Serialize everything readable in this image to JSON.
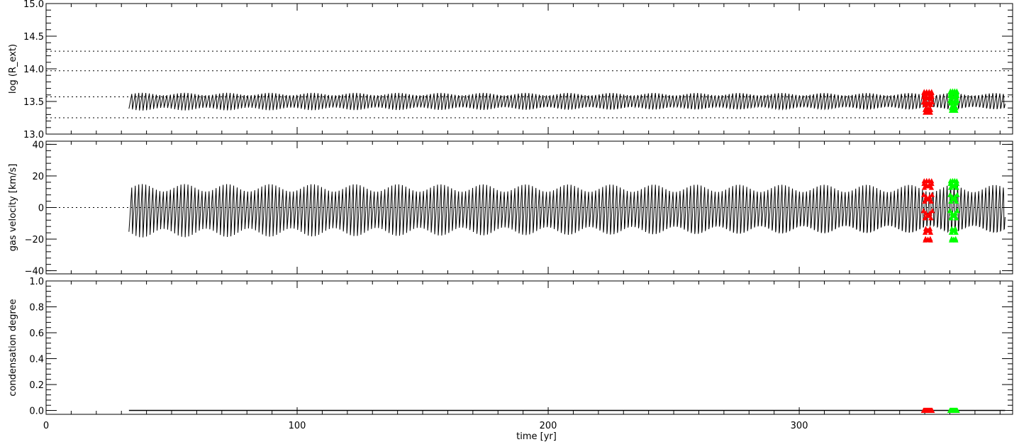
{
  "chart_data": [
    {
      "type": "line",
      "panel": "top",
      "ylabel": "log (R_ext)",
      "xlabel": "",
      "xlim": [
        0,
        385
      ],
      "ylim": [
        13.0,
        15.0
      ],
      "yticks": [
        13.0,
        13.5,
        14.0,
        14.5,
        15.0
      ],
      "ytick_labels": [
        "13.0",
        "13.5",
        "14.0",
        "14.5",
        "15.0"
      ],
      "reference_lines": [
        13.25,
        13.57,
        13.97,
        14.27
      ],
      "series": [
        {
          "color": "#000000",
          "x_start": 33,
          "x_end": 382,
          "period": 1.4,
          "y_min": 13.36,
          "y_max": 13.65
        },
        {
          "color": "#ff0000",
          "x_start": 349.5,
          "x_end": 353,
          "y_min": 13.33,
          "y_max": 13.65,
          "marker": "triangle"
        },
        {
          "color": "#00ff00",
          "x_start": 360,
          "x_end": 363,
          "y_min": 13.36,
          "y_max": 13.66,
          "marker": "triangle"
        }
      ]
    },
    {
      "type": "line",
      "panel": "middle",
      "ylabel": "gas velocity [km/s]",
      "xlabel": "",
      "xlim": [
        0,
        385
      ],
      "ylim": [
        -42,
        42
      ],
      "yticks": [
        -40,
        -20,
        0,
        20,
        40
      ],
      "ytick_labels": [
        "−40",
        "−20",
        "0",
        "20",
        "40"
      ],
      "reference_lines": [
        0
      ],
      "series": [
        {
          "color": "#000000",
          "x_start": 33,
          "x_end": 382,
          "period": 1.4,
          "y_min": -19,
          "y_max": 17
        },
        {
          "color": "#ff0000",
          "x_start": 349.5,
          "x_end": 353,
          "y_min": -21,
          "y_max": 17,
          "marker": "triangle"
        },
        {
          "color": "#00ff00",
          "x_start": 360,
          "x_end": 363,
          "y_min": -21,
          "y_max": 17,
          "marker": "triangle"
        }
      ]
    },
    {
      "type": "line",
      "panel": "bottom",
      "ylabel": "condensation degree",
      "xlabel": "time [yr]",
      "xlim": [
        0,
        385
      ],
      "ylim": [
        -0.03,
        1.0
      ],
      "yticks": [
        0.0,
        0.2,
        0.4,
        0.6,
        0.8,
        1.0
      ],
      "ytick_labels": [
        "0.0",
        "0.2",
        "0.4",
        "0.6",
        "0.8",
        "1.0"
      ],
      "xticks": [
        0,
        100,
        200,
        300
      ],
      "xtick_labels": [
        "0",
        "100",
        "200",
        "300"
      ],
      "series": [
        {
          "color": "#000000",
          "x_start": 33,
          "x_end": 382,
          "value": 0.0
        },
        {
          "color": "#ff0000",
          "x_start": 349.5,
          "x_end": 353,
          "value": 0.0,
          "marker": "triangle"
        },
        {
          "color": "#00ff00",
          "x_start": 360,
          "x_end": 363,
          "value": 0.0,
          "marker": "triangle"
        }
      ]
    }
  ]
}
